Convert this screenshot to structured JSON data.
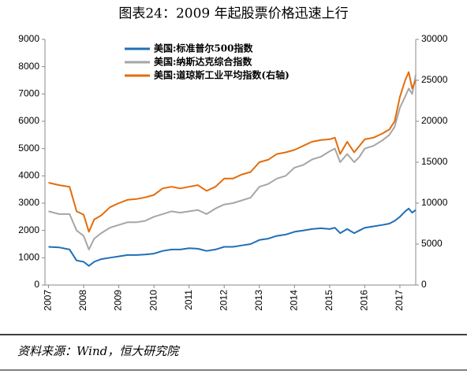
{
  "chart_data": {
    "type": "line",
    "title": "图表24：2009 年起股票价格迅速上行",
    "source": "资料来源：Wind，恒大研究院",
    "x": [
      2007.0,
      2007.3,
      2007.6,
      2007.8,
      2008.0,
      2008.15,
      2008.3,
      2008.5,
      2008.75,
      2009.0,
      2009.25,
      2009.5,
      2009.75,
      2010.0,
      2010.25,
      2010.5,
      2010.75,
      2011.0,
      2011.25,
      2011.5,
      2011.75,
      2012.0,
      2012.25,
      2012.5,
      2012.75,
      2013.0,
      2013.25,
      2013.5,
      2013.75,
      2014.0,
      2014.25,
      2014.5,
      2014.75,
      2015.0,
      2015.15,
      2015.3,
      2015.5,
      2015.7,
      2015.85,
      2016.0,
      2016.25,
      2016.5,
      2016.7,
      2016.85,
      2017.0,
      2017.15,
      2017.25,
      2017.35,
      2017.45
    ],
    "series": [
      {
        "name": "美国:标准普尔500指数",
        "color": "#1f6fb6",
        "values": [
          1400,
          1380,
          1300,
          900,
          850,
          700,
          850,
          950,
          1000,
          1050,
          1100,
          1100,
          1120,
          1150,
          1250,
          1300,
          1300,
          1350,
          1330,
          1250,
          1300,
          1400,
          1400,
          1450,
          1500,
          1650,
          1700,
          1800,
          1850,
          1950,
          2000,
          2050,
          2080,
          2050,
          2100,
          1900,
          2050,
          1900,
          2000,
          2100,
          2150,
          2200,
          2250,
          2350,
          2500,
          2700,
          2800,
          2650,
          2750
        ]
      },
      {
        "name": "美国:纳斯达克综合指数",
        "color": "#a6a6a6",
        "values": [
          2700,
          2600,
          2600,
          2000,
          1800,
          1300,
          1700,
          1900,
          2100,
          2200,
          2300,
          2300,
          2350,
          2500,
          2600,
          2700,
          2650,
          2700,
          2750,
          2600,
          2800,
          2950,
          3000,
          3100,
          3200,
          3600,
          3700,
          3900,
          4000,
          4300,
          4400,
          4600,
          4700,
          4900,
          5000,
          4500,
          4800,
          4500,
          4700,
          5000,
          5100,
          5300,
          5500,
          5800,
          6500,
          6900,
          7200,
          7000,
          7700
        ]
      },
      {
        "name": "美国:道琼斯工业平均指数(右轴)",
        "color": "#e46c0a",
        "axis": "y2",
        "values": [
          12500,
          12200,
          12000,
          9000,
          8600,
          6500,
          8000,
          8500,
          9500,
          10000,
          10400,
          10500,
          10700,
          11000,
          11800,
          12000,
          11800,
          12000,
          12200,
          11500,
          12000,
          13000,
          13000,
          13500,
          13800,
          15000,
          15300,
          16000,
          16200,
          16500,
          17000,
          17500,
          17700,
          17800,
          18000,
          16000,
          17500,
          16200,
          17000,
          17800,
          18000,
          18500,
          19000,
          20000,
          23000,
          25000,
          26000,
          24000,
          25000
        ]
      }
    ],
    "xlim": [
      2006.9,
      2017.45
    ],
    "xticks": [
      2007,
      2008,
      2009,
      2010,
      2011,
      2012,
      2013,
      2014,
      2015,
      2016,
      2017
    ],
    "ylim": [
      0,
      9000
    ],
    "yticks": [
      0,
      1000,
      2000,
      3000,
      4000,
      5000,
      6000,
      7000,
      8000,
      9000
    ],
    "y2lim": [
      0,
      30000
    ],
    "y2ticks": [
      0,
      5000,
      10000,
      15000,
      20000,
      25000,
      30000
    ],
    "grid": false
  }
}
